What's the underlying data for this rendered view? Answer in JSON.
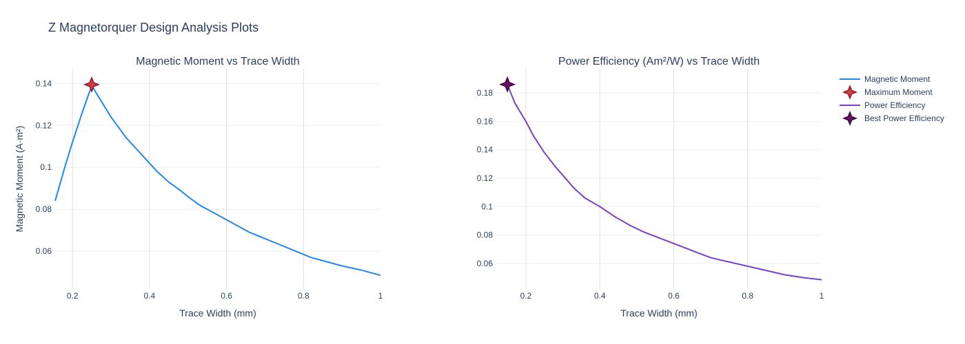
{
  "title": "Z Magnetorquer Design Analysis Plots",
  "colors": {
    "moment_line": "#1f85f0",
    "max_marker_fill": "#d63b4b",
    "max_marker_stroke": "#8b1a25",
    "efficiency_line": "#7a3fc7",
    "best_marker_fill": "#6b0f6b",
    "best_marker_stroke": "#3a083a",
    "grid_x": "#dedede",
    "grid_y": "#eeeeee",
    "text": "#2a3f5f"
  },
  "chart_data": [
    {
      "type": "line",
      "title": "Magnetic Moment vs Trace Width",
      "xlabel": "Trace Width (mm)",
      "ylabel": "Magnetic Moment (A·m²)",
      "xlim": [
        0.155,
        1.0
      ],
      "ylim": [
        0.042,
        0.147
      ],
      "xticks": [
        0.2,
        0.4,
        0.6,
        0.8,
        1.0
      ],
      "xtick_labels": [
        "0.2",
        "0.4",
        "0.6",
        "0.8",
        "1"
      ],
      "yticks": [
        0.06,
        0.08,
        0.1,
        0.12,
        0.14
      ],
      "ytick_labels": [
        "0.06",
        "0.08",
        "0.1",
        "0.12",
        "0.14"
      ],
      "series": [
        {
          "name": "Magnetic Moment",
          "x": [
            0.155,
            0.18,
            0.2,
            0.225,
            0.25,
            0.26,
            0.27,
            0.28,
            0.3,
            0.32,
            0.34,
            0.36,
            0.38,
            0.4,
            0.42,
            0.45,
            0.48,
            0.5,
            0.53,
            0.56,
            0.6,
            0.63,
            0.66,
            0.7,
            0.74,
            0.78,
            0.82,
            0.86,
            0.9,
            0.95,
            1.0
          ],
          "y": [
            0.084,
            0.1,
            0.112,
            0.126,
            0.139,
            0.136,
            0.133,
            0.13,
            0.124,
            0.119,
            0.114,
            0.11,
            0.106,
            0.102,
            0.098,
            0.093,
            0.089,
            0.086,
            0.082,
            0.079,
            0.075,
            0.072,
            0.069,
            0.066,
            0.063,
            0.06,
            0.057,
            0.055,
            0.053,
            0.051,
            0.0485
          ]
        }
      ],
      "markers": [
        {
          "name": "Maximum Moment",
          "x": 0.25,
          "y": 0.1395
        }
      ]
    },
    {
      "type": "line",
      "title": "Power Efficiency (Am²/W) vs Trace Width",
      "xlabel": "Trace Width (mm)",
      "ylabel": "",
      "xlim": [
        0.12,
        1.0
      ],
      "ylim": [
        0.042,
        0.197
      ],
      "xticks": [
        0.2,
        0.4,
        0.6,
        0.8,
        1.0
      ],
      "xtick_labels": [
        "0.2",
        "0.4",
        "0.6",
        "0.8",
        "1"
      ],
      "yticks": [
        0.06,
        0.08,
        0.1,
        0.12,
        0.14,
        0.16,
        0.18
      ],
      "ytick_labels": [
        "0.06",
        "0.08",
        "0.1",
        "0.12",
        "0.14",
        "0.16",
        "0.18"
      ],
      "series": [
        {
          "name": "Power Efficiency",
          "x": [
            0.15,
            0.17,
            0.2,
            0.22,
            0.25,
            0.28,
            0.3,
            0.33,
            0.36,
            0.4,
            0.44,
            0.48,
            0.52,
            0.56,
            0.6,
            0.65,
            0.7,
            0.75,
            0.8,
            0.85,
            0.9,
            0.95,
            1.0
          ],
          "y": [
            0.186,
            0.173,
            0.16,
            0.15,
            0.138,
            0.128,
            0.122,
            0.113,
            0.106,
            0.1,
            0.093,
            0.087,
            0.082,
            0.078,
            0.074,
            0.069,
            0.064,
            0.061,
            0.058,
            0.055,
            0.052,
            0.05,
            0.0485
          ]
        }
      ],
      "markers": [
        {
          "name": "Best Power Efficiency",
          "x": 0.15,
          "y": 0.186
        }
      ]
    }
  ],
  "legend": {
    "placement": "top-right",
    "items": [
      {
        "label": "Magnetic Moment",
        "kind": "line",
        "color": "#1f85f0"
      },
      {
        "label": "Maximum Moment",
        "kind": "star",
        "color": "#d63b4b",
        "stroke": "#8b1a25"
      },
      {
        "label": "Power Efficiency",
        "kind": "line",
        "color": "#7a3fc7"
      },
      {
        "label": "Best Power Efficiency",
        "kind": "star",
        "color": "#6b0f6b",
        "stroke": "#3a083a"
      }
    ]
  }
}
